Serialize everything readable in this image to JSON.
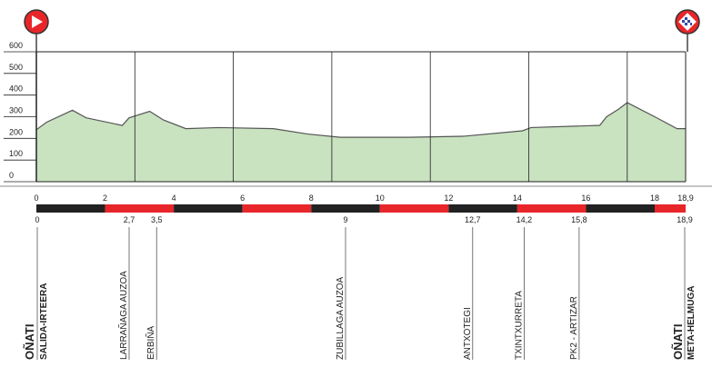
{
  "chart_data": {
    "type": "area",
    "x": [
      0,
      0.3,
      1.05,
      1.45,
      2.5,
      2.7,
      3.3,
      3.7,
      4.35,
      5.3,
      6.9,
      7.9,
      8.85,
      10.85,
      12.45,
      14.15,
      14.4,
      16.4,
      16.6,
      16.95,
      17.2,
      18,
      18.65,
      18.9
    ],
    "values": [
      240,
      275,
      330,
      295,
      260,
      295,
      325,
      285,
      245,
      250,
      245,
      220,
      205,
      205,
      210,
      235,
      250,
      260,
      300,
      335,
      365,
      300,
      245,
      245
    ],
    "color": "#c9e2c0",
    "line_color": "#555555",
    "xlim": [
      0,
      18.9
    ],
    "ylim": [
      0,
      600
    ],
    "yticks": [
      0,
      100,
      200,
      300,
      400,
      500,
      600
    ],
    "xticks": [
      0,
      2,
      4,
      6,
      8,
      10,
      12,
      14,
      16,
      18,
      {
        "value": 18.9,
        "label": "18,9"
      }
    ],
    "scale_colors": [
      "#222222",
      "#e8262a"
    ],
    "waypoints": [
      {
        "km": 0,
        "labels": [
          "OÑATI",
          "SALIDA-IRTEERA"
        ]
      },
      {
        "km": {
          "value": 2.7,
          "label": "2,7"
        },
        "labels": [
          "LARRAÑAGA AUZOA"
        ]
      },
      {
        "km": {
          "value": 3.5,
          "label": "3,5"
        },
        "labels": [
          "ERBIÑA"
        ]
      },
      {
        "km": 9,
        "labels": [
          "ZUBILLAGA AUZOA"
        ]
      },
      {
        "km": {
          "value": 12.7,
          "label": "12,7"
        },
        "labels": [
          "ANTXOTEGI"
        ]
      },
      {
        "km": {
          "value": 14.2,
          "label": "14,2"
        },
        "labels": [
          "TXINTXURRETA"
        ]
      },
      {
        "km": {
          "value": 15.8,
          "label": "15,8"
        },
        "labels": [
          "PK2 - ARTIZAR"
        ]
      },
      {
        "km": {
          "value": 18.9,
          "label": "18,9"
        },
        "labels": [
          "OÑATI",
          "META-HELMUGA"
        ]
      }
    ]
  }
}
